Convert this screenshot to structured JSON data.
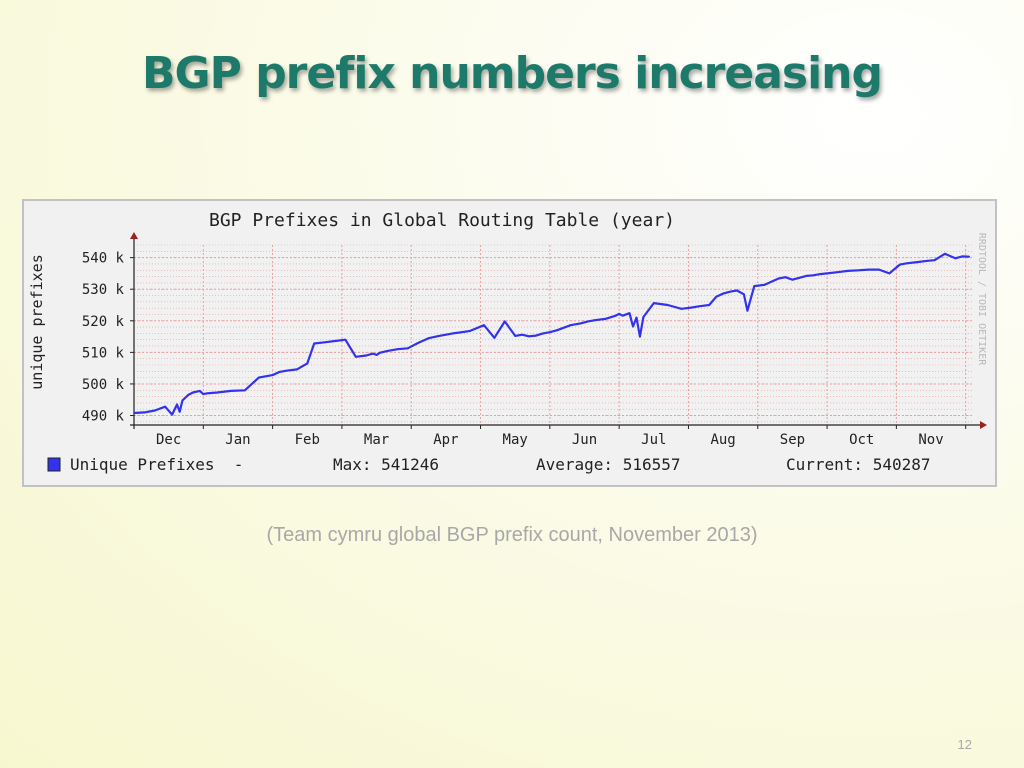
{
  "slide": {
    "title": "BGP prefix numbers increasing",
    "caption": "(Team cymru global BGP prefix count, November 2013)",
    "page_number": "12"
  },
  "chart_data": {
    "type": "line",
    "title": "BGP Prefixes in Global Routing Table (year)",
    "ylabel": "unique prefixes",
    "side_label": "RRDTOOL / TOBI OETIKER",
    "xlim": [
      0,
      12.12
    ],
    "ylim": [
      487,
      544
    ],
    "categories": [
      "Dec",
      "Jan",
      "Feb",
      "Mar",
      "Apr",
      "May",
      "Jun",
      "Jul",
      "Aug",
      "Sep",
      "Oct",
      "Nov"
    ],
    "yticks": [
      490,
      500,
      510,
      520,
      530,
      540
    ],
    "ytick_labels": [
      "490 k",
      "500 k",
      "510 k",
      "520 k",
      "530 k",
      "540 k"
    ],
    "grid": true,
    "series": [
      {
        "name": "Unique Prefixes",
        "color": "#3333ee",
        "x": [
          0.0,
          0.15,
          0.3,
          0.45,
          0.55,
          0.62,
          0.66,
          0.7,
          0.78,
          0.85,
          0.95,
          1.0,
          1.05,
          1.2,
          1.4,
          1.6,
          1.8,
          2.0,
          2.1,
          2.2,
          2.35,
          2.5,
          2.6,
          2.75,
          2.9,
          3.05,
          3.2,
          3.35,
          3.45,
          3.5,
          3.55,
          3.65,
          3.8,
          3.95,
          4.1,
          4.25,
          4.4,
          4.5,
          4.6,
          4.7,
          4.85,
          5.05,
          5.2,
          5.35,
          5.5,
          5.6,
          5.7,
          5.8,
          5.9,
          6.0,
          6.1,
          6.3,
          6.45,
          6.55,
          6.65,
          6.8,
          6.95,
          7.0,
          7.05,
          7.15,
          7.2,
          7.25,
          7.3,
          7.35,
          7.5,
          7.7,
          7.9,
          8.05,
          8.15,
          8.3,
          8.4,
          8.5,
          8.6,
          8.7,
          8.8,
          8.85,
          8.95,
          9.1,
          9.2,
          9.3,
          9.4,
          9.5,
          9.6,
          9.7,
          9.8,
          9.9,
          10.0,
          10.15,
          10.3,
          10.45,
          10.6,
          10.75,
          10.9,
          11.05,
          11.15,
          11.3,
          11.45,
          11.55,
          11.7,
          11.85,
          11.95,
          12.05
        ],
        "values": [
          490.8,
          491.0,
          491.6,
          492.8,
          490.3,
          493.5,
          491.2,
          494.8,
          496.5,
          497.3,
          497.8,
          496.8,
          497.0,
          497.3,
          497.8,
          498.0,
          502.0,
          502.8,
          503.8,
          504.2,
          504.6,
          506.5,
          512.8,
          513.2,
          513.6,
          514.0,
          508.6,
          509.0,
          509.6,
          509.2,
          509.9,
          510.4,
          511.0,
          511.3,
          513.0,
          514.5,
          515.2,
          515.6,
          516.0,
          516.3,
          516.8,
          518.6,
          514.6,
          519.8,
          515.2,
          515.6,
          515.1,
          515.3,
          516.0,
          516.4,
          517.0,
          518.6,
          519.2,
          519.8,
          520.2,
          520.6,
          521.6,
          522.2,
          521.6,
          522.4,
          518.2,
          521.0,
          515.0,
          521.2,
          525.6,
          525.0,
          523.8,
          524.2,
          524.6,
          525.0,
          527.6,
          528.6,
          529.2,
          529.6,
          528.4,
          523.2,
          531.0,
          531.4,
          532.4,
          533.4,
          533.8,
          533.0,
          533.6,
          534.2,
          534.4,
          534.8,
          535.0,
          535.4,
          535.8,
          536.0,
          536.2,
          536.2,
          535.0,
          537.8,
          538.2,
          538.6,
          539.0,
          539.2,
          541.2,
          539.8,
          540.4,
          540.3
        ]
      }
    ],
    "legend": {
      "label": "Unique Prefixes  -",
      "max": "Max: 541246",
      "average": "Average: 516557",
      "current": "Current: 540287"
    }
  },
  "colors": {
    "title": "#1d7a6a",
    "line": "#3333ee",
    "grid": "#e8a0a0",
    "axis": "#222222",
    "arrow": "#a02020",
    "caption": "#a8a8a8",
    "frame_bg": "#f1f1f1"
  }
}
